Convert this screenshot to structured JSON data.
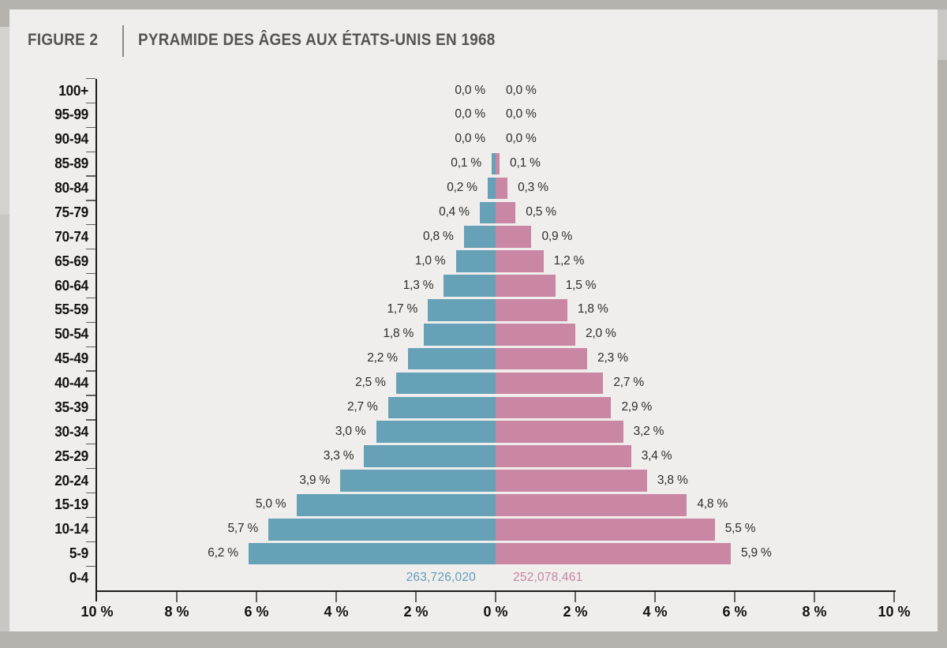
{
  "figure": {
    "label": "FIGURE 2",
    "title": "PYRAMIDE DES ÂGES AUX ÉTATS-UNIS EN 1968"
  },
  "chart_data": {
    "type": "bar",
    "subtype": "population-pyramid",
    "title": "PYRAMIDE DES ÂGES AUX ÉTATS-UNIS EN 1968",
    "unit": "% of population per side",
    "orientation": "horizontal",
    "grid": false,
    "legend": "none",
    "categories": [
      "100+",
      "95-99",
      "90-94",
      "85-89",
      "80-84",
      "75-79",
      "70-74",
      "65-69",
      "60-64",
      "55-59",
      "50-54",
      "45-49",
      "40-44",
      "35-39",
      "30-34",
      "25-29",
      "20-24",
      "15-19",
      "10-14",
      "5-9",
      "0-4"
    ],
    "series": [
      {
        "name": "left",
        "color": "#66a1b8",
        "values": [
          0.0,
          0.0,
          0.0,
          0.1,
          0.2,
          0.4,
          0.8,
          1.0,
          1.3,
          1.7,
          1.8,
          2.2,
          2.5,
          2.7,
          3.0,
          3.3,
          3.9,
          5.0,
          5.7,
          6.2,
          null
        ],
        "labels": [
          "0,0 %",
          "0,0 %",
          "0,0 %",
          "0,1 %",
          "0,2 %",
          "0,4 %",
          "0,8 %",
          "1,0 %",
          "1,3 %",
          "1,7 %",
          "1,8 %",
          "2,2 %",
          "2,5 %",
          "2,7 %",
          "3,0 %",
          "3,3 %",
          "3,9 %",
          "5,0 %",
          "5,7 %",
          "6,2 %",
          null
        ],
        "total": "263,726,020",
        "total_color": "#5e9db9"
      },
      {
        "name": "right",
        "color": "#c987a4",
        "values": [
          0.0,
          0.0,
          0.0,
          0.1,
          0.3,
          0.5,
          0.9,
          1.2,
          1.5,
          1.8,
          2.0,
          2.3,
          2.7,
          2.9,
          3.2,
          3.4,
          3.8,
          4.8,
          5.5,
          5.9,
          null
        ],
        "labels": [
          "0,0 %",
          "0,0 %",
          "0,0 %",
          "0,1 %",
          "0,3 %",
          "0,5 %",
          "0,9 %",
          "1,2 %",
          "1,5 %",
          "1,8 %",
          "2,0 %",
          "2,3 %",
          "2,7 %",
          "2,9 %",
          "3,2 %",
          "3,4 %",
          "3,8 %",
          "4,8 %",
          "5,5 %",
          "5,9 %",
          null
        ],
        "total": "252,078,461",
        "total_color": "#c784a2"
      }
    ],
    "x_axis": {
      "tick_labels": [
        "10 %",
        "8 %",
        "6 %",
        "4 %",
        "2 %",
        "0 %",
        "2 %",
        "4 %",
        "6 %",
        "8 %",
        "10 %"
      ],
      "range_percent": [
        -10,
        10
      ],
      "tick_step_percent": 2
    }
  }
}
